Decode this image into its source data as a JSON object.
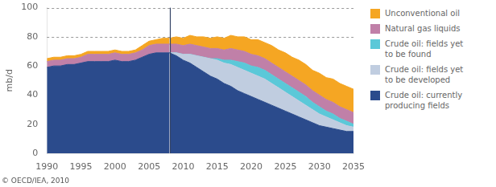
{
  "chart_data": {
    "type": "area",
    "stacked": true,
    "ylabel": "mb/d",
    "annotations": [
      "© OECD/IEA, 2010"
    ],
    "xlim": [
      1990,
      2035
    ],
    "xticks": [
      1990,
      1995,
      2000,
      2005,
      2010,
      2015,
      2020,
      2025,
      2030,
      2035
    ],
    "ylim": [
      0,
      100
    ],
    "yticks": [
      0,
      20,
      40,
      60,
      80,
      100
    ],
    "grid": false,
    "vlines": [
      2008
    ],
    "hlines": [
      80,
      100
    ],
    "legend": "right",
    "series": [
      {
        "name": "Crude oil: currently\nproducing fields",
        "color": "#2B4B8C",
        "x": [
          1990,
          1991,
          1992,
          1993,
          1994,
          1995,
          1996,
          1997,
          1998,
          1999,
          2000,
          2001,
          2002,
          2003,
          2004,
          2005,
          2006,
          2007,
          2008
        ],
        "values": [
          59,
          60,
          60,
          61,
          61,
          62,
          63,
          63,
          63,
          63,
          64,
          63,
          63,
          64,
          66,
          68,
          69,
          69,
          69
        ]
      },
      {
        "name": "Natural gas liquids",
        "color": "#C080A8",
        "x": [
          1990,
          1991,
          1992,
          1993,
          1994,
          1995,
          1996,
          1997,
          1998,
          1999,
          2000,
          2001,
          2002,
          2003,
          2004,
          2005,
          2006,
          2007,
          2008
        ],
        "values": [
          4,
          4,
          4,
          4,
          4,
          4,
          5,
          5,
          5,
          5,
          5,
          5,
          5,
          5,
          5,
          6,
          6,
          6,
          6
        ]
      },
      {
        "name": "Unconventional oil",
        "color": "#F5A623",
        "x": [
          1990,
          1991,
          1992,
          1993,
          1994,
          1995,
          1996,
          1997,
          1998,
          1999,
          2000,
          2001,
          2002,
          2003,
          2004,
          2005,
          2006,
          2007,
          2008
        ],
        "values": [
          2,
          2,
          2,
          2,
          2,
          2,
          2,
          2,
          2,
          2,
          2,
          2,
          2,
          2,
          3,
          3,
          3,
          4,
          4
        ]
      },
      {
        "name": "Crude oil: currently\nproducing fields",
        "color": "#2B4B8C",
        "x": [
          2008,
          2009,
          2010,
          2011,
          2012,
          2013,
          2014,
          2015,
          2016,
          2017,
          2018,
          2019,
          2020,
          2021,
          2022,
          2023,
          2024,
          2025,
          2026,
          2027,
          2028,
          2029,
          2030,
          2031,
          2032,
          2033,
          2034,
          2035
        ],
        "values": [
          69,
          67,
          64,
          62,
          59,
          56,
          53,
          51,
          48,
          46,
          43,
          41,
          39,
          37,
          35,
          33,
          31,
          29,
          27,
          25,
          23,
          21,
          19,
          18,
          17,
          16,
          15,
          15
        ]
      },
      {
        "name": "Crude oil: fields yet\nto be developed",
        "color": "#C0CDE0",
        "x": [
          2008,
          2009,
          2010,
          2011,
          2012,
          2013,
          2014,
          2015,
          2016,
          2017,
          2018,
          2019,
          2020,
          2021,
          2022,
          2023,
          2024,
          2025,
          2026,
          2027,
          2028,
          2029,
          2030,
          2031,
          2032,
          2033,
          2034,
          2035
        ],
        "values": [
          0,
          2,
          4,
          6,
          8,
          10,
          12,
          13,
          14,
          15,
          16,
          16,
          16,
          16,
          16,
          15,
          14,
          13,
          12,
          11,
          10,
          9,
          8,
          7,
          6,
          5,
          4,
          3
        ]
      },
      {
        "name": "Crude oil: fields yet\nto be found",
        "color": "#5BC8D8",
        "x": [
          2008,
          2009,
          2010,
          2011,
          2012,
          2013,
          2014,
          2015,
          2016,
          2017,
          2018,
          2019,
          2020,
          2021,
          2022,
          2023,
          2024,
          2025,
          2026,
          2027,
          2028,
          2029,
          2030,
          2031,
          2032,
          2033,
          2034,
          2035
        ],
        "values": [
          0,
          0,
          0,
          0,
          0,
          0,
          0,
          1,
          2,
          3,
          4,
          5,
          5,
          6,
          6,
          6,
          6,
          6,
          6,
          6,
          6,
          5,
          5,
          4,
          4,
          3,
          3,
          2
        ]
      },
      {
        "name": "Natural gas liquids",
        "color": "#C080A8",
        "x": [
          2008,
          2009,
          2010,
          2011,
          2012,
          2013,
          2014,
          2015,
          2016,
          2017,
          2018,
          2019,
          2020,
          2021,
          2022,
          2023,
          2024,
          2025,
          2026,
          2027,
          2028,
          2029,
          2030,
          2031,
          2032,
          2033,
          2034,
          2035
        ],
        "values": [
          6,
          6,
          6,
          7,
          7,
          7,
          7,
          7,
          7,
          8,
          8,
          8,
          8,
          8,
          8,
          8,
          8,
          8,
          8,
          8,
          8,
          8,
          8,
          8,
          8,
          8,
          8,
          8
        ]
      },
      {
        "name": "Unconventional oil",
        "color": "#F5A623",
        "x": [
          2008,
          2009,
          2010,
          2011,
          2012,
          2013,
          2014,
          2015,
          2016,
          2017,
          2018,
          2019,
          2020,
          2021,
          2022,
          2023,
          2024,
          2025,
          2026,
          2027,
          2028,
          2029,
          2030,
          2031,
          2032,
          2033,
          2034,
          2035
        ],
        "values": [
          4,
          5,
          5,
          6,
          6,
          7,
          7,
          8,
          8,
          9,
          9,
          10,
          10,
          11,
          11,
          12,
          12,
          13,
          13,
          14,
          14,
          14,
          15,
          15,
          16,
          16,
          16,
          16
        ]
      }
    ]
  }
}
